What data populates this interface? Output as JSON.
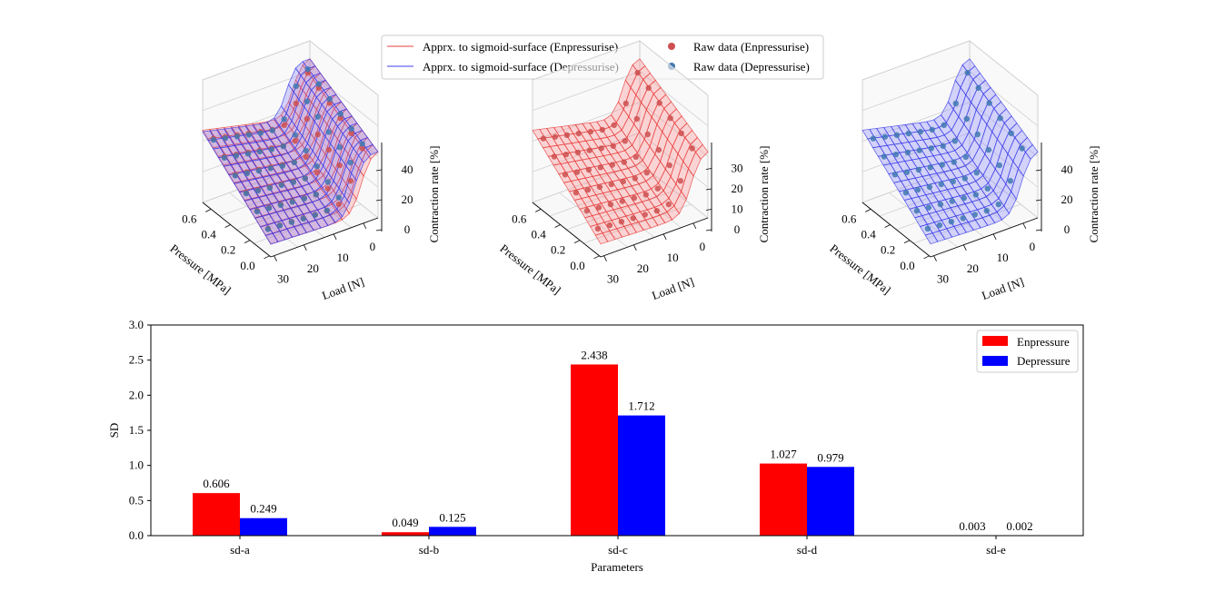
{
  "top_legend": {
    "items": [
      {
        "label": "Apprx. to sigmoid-surface (Enpressurise)",
        "kind": "line",
        "color": "#f08080"
      },
      {
        "label": "Apprx. to sigmoid-surface (Depressurise)",
        "kind": "line",
        "color": "#8080f0"
      },
      {
        "label": "Raw data (Enpressurise)",
        "kind": "marker",
        "color": "#cd4f4f"
      },
      {
        "label": "Raw data (Depressurise)",
        "kind": "marker",
        "color": "#3f78b0"
      }
    ]
  },
  "plots_3d": [
    {
      "surfaces": [
        "enpressurise",
        "depressurise"
      ],
      "points": [
        "enpressurise",
        "depressurise"
      ],
      "x_axis": {
        "label": "Pressure [MPa]",
        "ticks": [
          "0.0",
          "0.2",
          "0.4",
          "0.6"
        ]
      },
      "y_axis": {
        "label": "Load [N]",
        "ticks": [
          "30",
          "20",
          "10",
          "0"
        ]
      },
      "z_axis": {
        "label": "Contraction rate [%]",
        "ticks": [
          "0",
          "20",
          "40"
        ]
      }
    },
    {
      "surfaces": [
        "enpressurise"
      ],
      "points": [
        "enpressurise"
      ],
      "x_axis": {
        "label": "Pressure [MPa]",
        "ticks": [
          "0.0",
          "0.2",
          "0.4",
          "0.6"
        ]
      },
      "y_axis": {
        "label": "Load [N]",
        "ticks": [
          "30",
          "20",
          "10",
          "0"
        ]
      },
      "z_axis": {
        "label": "Contraction rate [%]",
        "ticks": [
          "0",
          "10",
          "20",
          "30"
        ]
      }
    },
    {
      "surfaces": [
        "depressurise"
      ],
      "points": [
        "depressurise"
      ],
      "x_axis": {
        "label": "Pressure [MPa]",
        "ticks": [
          "0.0",
          "0.2",
          "0.4",
          "0.6"
        ]
      },
      "y_axis": {
        "label": "Load [N]",
        "ticks": [
          "30",
          "20",
          "10",
          "0"
        ]
      },
      "z_axis": {
        "label": "Contraction rate [%]",
        "ticks": [
          "0",
          "20",
          "40"
        ]
      }
    }
  ],
  "chart_data": {
    "type": "bar",
    "categories": [
      "sd-a",
      "sd-b",
      "sd-c",
      "sd-d",
      "sd-e"
    ],
    "series": [
      {
        "name": "Enpressure",
        "color": "#ff0000",
        "values": [
          0.606,
          0.049,
          2.438,
          1.027,
          0.003
        ],
        "labels": [
          "0.606",
          "0.049",
          "2.438",
          "1.027",
          "0.003"
        ]
      },
      {
        "name": "Depressure",
        "color": "#0000ff",
        "values": [
          0.249,
          0.125,
          1.712,
          0.979,
          0.002
        ],
        "labels": [
          "0.249",
          "0.125",
          "1.712",
          "0.979",
          "0.002"
        ]
      }
    ],
    "xlabel": "Parameters",
    "ylabel": "SD",
    "ylim": [
      0,
      3.0
    ],
    "yticks": [
      "0.0",
      "0.5",
      "1.0",
      "1.5",
      "2.0",
      "2.5",
      "3.0"
    ],
    "grid": false,
    "legend_position": "top-right"
  }
}
